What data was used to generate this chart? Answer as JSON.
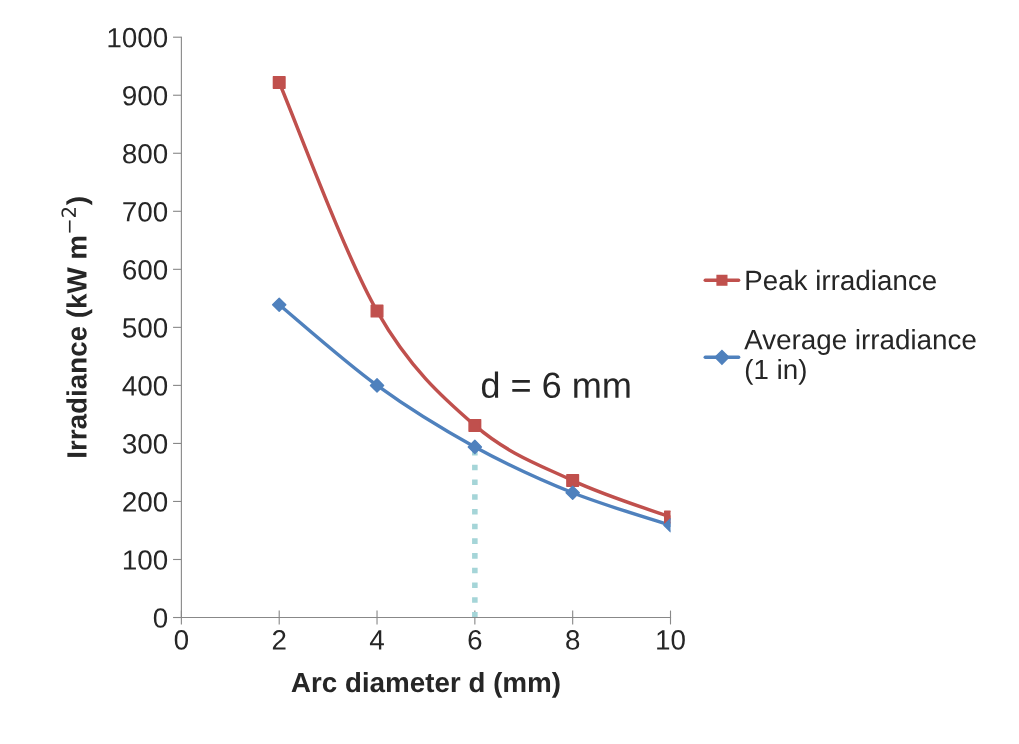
{
  "chart_data": {
    "type": "line",
    "xlabel": "Arc diameter d (mm)",
    "ylabel": "Irradiance (kW m$^{−2}$)",
    "x": [
      2,
      4,
      6,
      8,
      10
    ],
    "series": [
      {
        "name": "Peak irradiance",
        "color": "#c0504d",
        "marker": "square",
        "values": [
          922,
          528,
          331,
          236,
          173
        ]
      },
      {
        "name": "Average irradiance\n(1 in)",
        "color": "#4f81bd",
        "marker": "diamond",
        "values": [
          539,
          400,
          294,
          215,
          159
        ]
      }
    ],
    "xlim": [
      0,
      10
    ],
    "xticks": [
      0,
      2,
      4,
      6,
      8,
      10
    ],
    "ylim": [
      0,
      1000
    ],
    "yticks": [
      0,
      100,
      200,
      300,
      400,
      500,
      600,
      700,
      800,
      900,
      1000
    ],
    "ref_lines": [
      {
        "axis": "x",
        "value": 6,
        "label": "d = 6 mm",
        "color": "#a5d5d8",
        "line_style": "dotted"
      }
    ],
    "grid": false,
    "legend": "right",
    "line_style": "solid"
  }
}
